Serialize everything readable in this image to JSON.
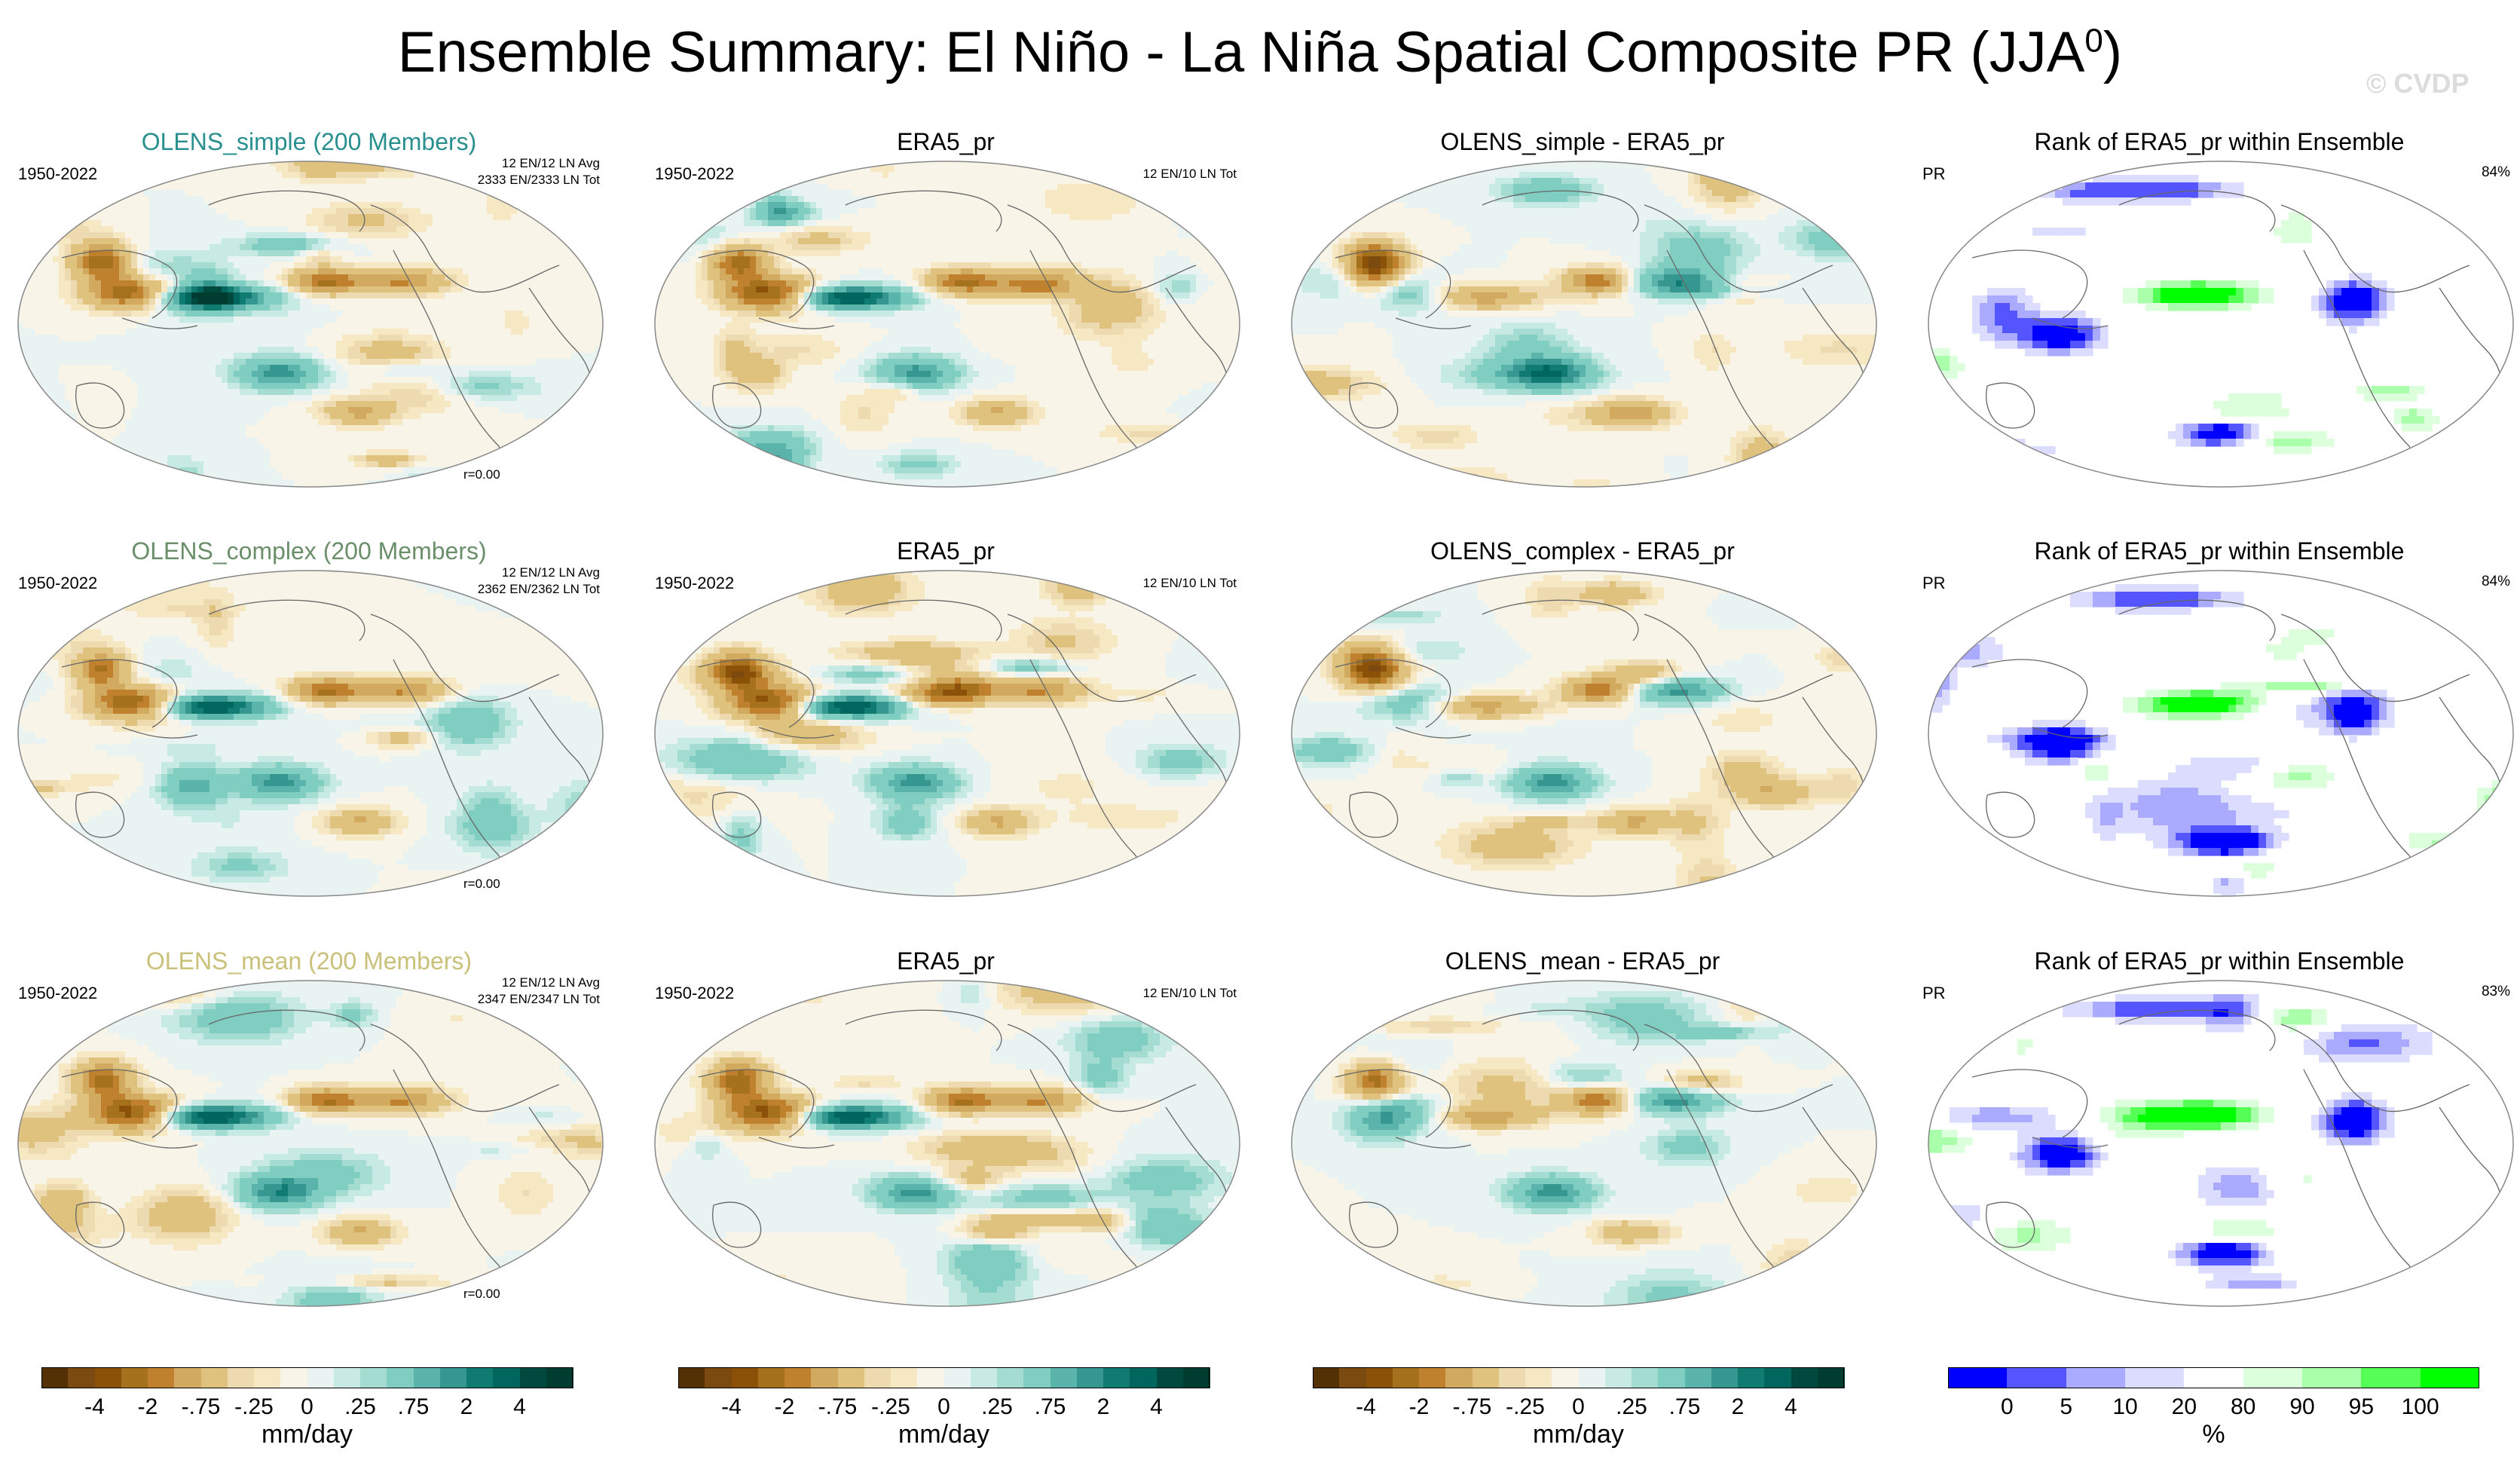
{
  "title": {
    "main": "Ensemble Summary: El Niño - La Niña Spatial Composite PR (JJA",
    "sup": "0",
    "close": ")"
  },
  "watermark": "© CVDP",
  "colors": {
    "brbg": [
      "#543005",
      "#7a4a10",
      "#8c5109",
      "#a6711d",
      "#bf812d",
      "#d2aa5f",
      "#dfc27d",
      "#eddab0",
      "#f6e8c3",
      "#f8f4e8",
      "#e9f4f2",
      "#c7eae5",
      "#a4dcd2",
      "#80cdc1",
      "#5ab4ab",
      "#35978f",
      "#0f7b71",
      "#01665e",
      "#01493f",
      "#003c30"
    ],
    "rank": [
      "#0000ff",
      "#5555ff",
      "#aaaaff",
      "#dcdcff",
      "#ffffff",
      "#dcffdc",
      "#aaffaa",
      "#55ff55",
      "#00ff00"
    ]
  },
  "rows": [
    {
      "ens": {
        "title": "OLENS_simple (200 Members)",
        "color": "#2a8f8f",
        "years": "1950-2022",
        "info1": "12 EN/12 LN Avg",
        "info2": "2333 EN/2333 LN Tot",
        "r": "r=0.00"
      },
      "obs": {
        "title": "ERA5_pr",
        "years": "1950-2022",
        "info": "12 EN/10 LN Tot"
      },
      "diff": {
        "title": "OLENS_simple - ERA5_pr"
      },
      "rank": {
        "title": "Rank of ERA5_pr within Ensemble",
        "label": "PR",
        "pct": "84%"
      }
    },
    {
      "ens": {
        "title": "OLENS_complex (200 Members)",
        "color": "#6a8f6a",
        "years": "1950-2022",
        "info1": "12 EN/12 LN Avg",
        "info2": "2362 EN/2362 LN Tot",
        "r": "r=0.00"
      },
      "obs": {
        "title": "ERA5_pr",
        "years": "1950-2022",
        "info": "12 EN/10 LN Tot"
      },
      "diff": {
        "title": "OLENS_complex - ERA5_pr"
      },
      "rank": {
        "title": "Rank of ERA5_pr within Ensemble",
        "label": "PR",
        "pct": "84%"
      }
    },
    {
      "ens": {
        "title": "OLENS_mean (200 Members)",
        "color": "#c9c07a",
        "years": "1950-2022",
        "info1": "12 EN/12 LN Avg",
        "info2": "2347 EN/2347 LN Tot",
        "r": "r=0.00"
      },
      "obs": {
        "title": "ERA5_pr",
        "years": "1950-2022",
        "info": "12 EN/10 LN Tot"
      },
      "diff": {
        "title": "OLENS_mean - ERA5_pr"
      },
      "rank": {
        "title": "Rank of ERA5_pr within Ensemble",
        "label": "PR",
        "pct": "83%"
      }
    }
  ],
  "colorbars": [
    {
      "type": "brbg",
      "ticks": [
        "-4",
        "-2",
        "-.75",
        "-.25",
        "0",
        ".25",
        ".75",
        "2",
        "4"
      ],
      "units": "mm/day"
    },
    {
      "type": "brbg",
      "ticks": [
        "-4",
        "-2",
        "-.75",
        "-.25",
        "0",
        ".25",
        ".75",
        "2",
        "4"
      ],
      "units": "mm/day"
    },
    {
      "type": "brbg",
      "ticks": [
        "-4",
        "-2",
        "-.75",
        "-.25",
        "0",
        ".25",
        ".75",
        "2",
        "4"
      ],
      "units": "mm/day"
    },
    {
      "type": "rank",
      "ticks": [
        "0",
        "5",
        "10",
        "20",
        "80",
        "90",
        "95",
        "100"
      ],
      "units": "%"
    }
  ]
}
